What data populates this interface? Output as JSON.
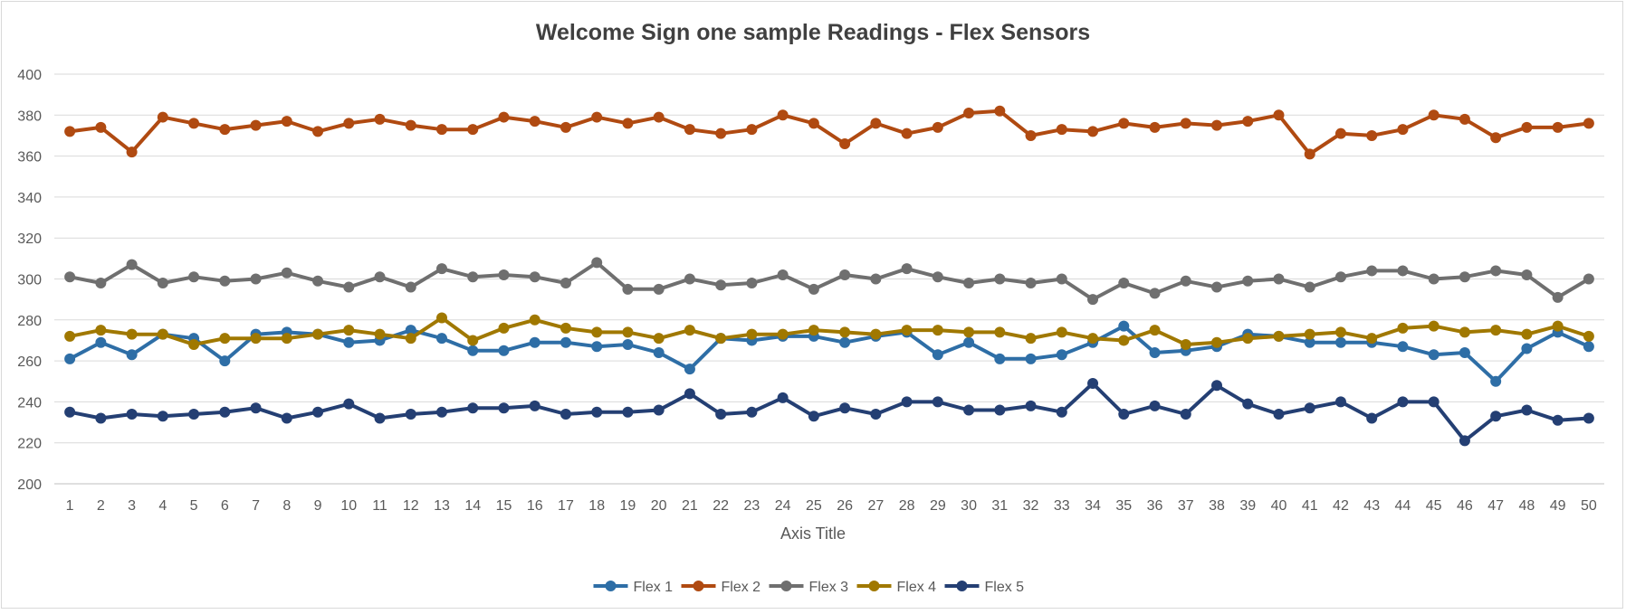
{
  "chart_data": {
    "type": "line",
    "title": "Welcome Sign one sample Readings - Flex Sensors",
    "xlabel": "Axis Title",
    "ylabel": "",
    "ylim": [
      200,
      400
    ],
    "yticks": [
      200,
      220,
      240,
      260,
      280,
      300,
      320,
      340,
      360,
      380,
      400
    ],
    "grid": true,
    "legend": "bottom-center",
    "categories": [
      1,
      2,
      3,
      4,
      5,
      6,
      7,
      8,
      9,
      10,
      11,
      12,
      13,
      14,
      15,
      16,
      17,
      18,
      19,
      20,
      21,
      22,
      23,
      24,
      25,
      26,
      27,
      28,
      29,
      30,
      31,
      32,
      33,
      34,
      35,
      36,
      37,
      38,
      39,
      40,
      41,
      42,
      43,
      44,
      45,
      46,
      47,
      48,
      49,
      50
    ],
    "series": [
      {
        "name": "Flex 1",
        "color": "#2e6ea6",
        "values": [
          261,
          269,
          263,
          273,
          271,
          260,
          273,
          274,
          273,
          269,
          270,
          275,
          271,
          265,
          265,
          269,
          269,
          267,
          268,
          264,
          256,
          271,
          270,
          272,
          272,
          269,
          272,
          274,
          263,
          269,
          261,
          261,
          263,
          269,
          277,
          264,
          265,
          267,
          273,
          272,
          269,
          269,
          269,
          267,
          263,
          264,
          250,
          266,
          274,
          267
        ]
      },
      {
        "name": "Flex 2",
        "color": "#b04a11",
        "values": [
          372,
          374,
          362,
          379,
          376,
          373,
          375,
          377,
          372,
          376,
          378,
          375,
          373,
          373,
          379,
          377,
          374,
          379,
          376,
          379,
          373,
          371,
          373,
          380,
          376,
          366,
          376,
          371,
          374,
          381,
          382,
          370,
          373,
          372,
          376,
          374,
          376,
          375,
          377,
          380,
          361,
          371,
          370,
          373,
          380,
          378,
          369,
          374,
          374,
          376
        ]
      },
      {
        "name": "Flex 3",
        "color": "#6f6f6f",
        "values": [
          301,
          298,
          307,
          298,
          301,
          299,
          300,
          303,
          299,
          296,
          301,
          296,
          305,
          301,
          302,
          301,
          298,
          308,
          295,
          295,
          300,
          297,
          298,
          302,
          295,
          302,
          300,
          305,
          301,
          298,
          300,
          298,
          300,
          290,
          298,
          293,
          299,
          296,
          299,
          300,
          296,
          301,
          304,
          304,
          300,
          301,
          304,
          302,
          291,
          300
        ]
      },
      {
        "name": "Flex 4",
        "color": "#a07800",
        "values": [
          272,
          275,
          273,
          273,
          268,
          271,
          271,
          271,
          273,
          275,
          273,
          271,
          281,
          270,
          276,
          280,
          276,
          274,
          274,
          271,
          275,
          271,
          273,
          273,
          275,
          274,
          273,
          275,
          275,
          274,
          274,
          271,
          274,
          271,
          270,
          275,
          268,
          269,
          271,
          272,
          273,
          274,
          271,
          276,
          277,
          274,
          275,
          273,
          277,
          272
        ]
      },
      {
        "name": "Flex 5",
        "color": "#243f73",
        "values": [
          235,
          232,
          234,
          233,
          234,
          235,
          237,
          232,
          235,
          239,
          232,
          234,
          235,
          237,
          237,
          238,
          234,
          235,
          235,
          236,
          244,
          234,
          235,
          242,
          233,
          237,
          234,
          240,
          240,
          236,
          236,
          238,
          235,
          249,
          234,
          238,
          234,
          248,
          239,
          234,
          237,
          240,
          232,
          240,
          240,
          221,
          233,
          236,
          231,
          232
        ]
      }
    ]
  }
}
